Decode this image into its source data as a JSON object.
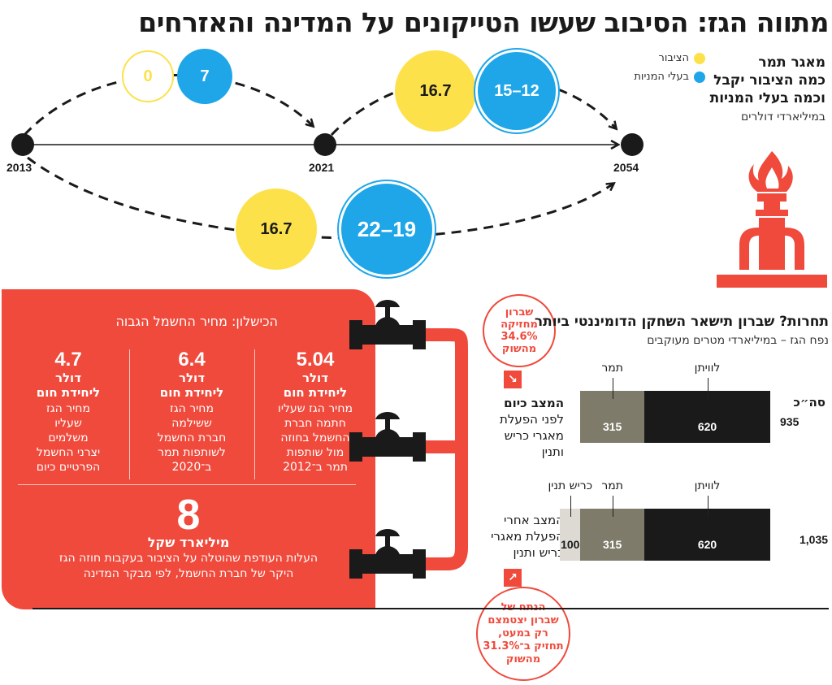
{
  "header": {
    "title": "מתווה הגז: הסיבוב שעשו הטייקונים על המדינה והאזרחים"
  },
  "reservoir": {
    "line1": "מאגר תמר",
    "line2": "כמה הציבור יקבל",
    "line3": "וכמה בעלי המניות",
    "units": "במיליארדי דולרים"
  },
  "legend": {
    "public": "הציבור",
    "owners": "בעלי המניות",
    "public_color": "#fce14b",
    "owners_color": "#1fa6e8"
  },
  "timeline": {
    "years": [
      "2013",
      "2021",
      "2054"
    ],
    "p2013_2021": {
      "public": "0",
      "owners": "7"
    },
    "p2021_2054": {
      "public": "16.7",
      "owners": "15–12"
    },
    "p2013_2054": {
      "public": "16.7",
      "owners": "22–19"
    }
  },
  "failure": {
    "title": "הכישלון: מחיר החשמל הגבוה",
    "col1": {
      "value": "5.04",
      "unit1": "דולר",
      "unit2": "ליחידת חום",
      "desc": [
        "מחיר הגז שעליו",
        "חתמה חברת",
        "החשמל בחוזה",
        "מול שותפות",
        "תמר ב־2012"
      ]
    },
    "col2": {
      "value": "6.4",
      "unit1": "דולר",
      "unit2": "ליחידת חום",
      "desc": [
        "מחיר הגז",
        "ששילמה",
        "חברת החשמל",
        "לשותפות תמר",
        "ב־2020"
      ]
    },
    "col3": {
      "value": "4.7",
      "unit1": "דולר",
      "unit2": "ליחידת חום",
      "desc": [
        "מחיר הגז",
        "שעליו",
        "משלמים",
        "יצרני החשמל",
        "הפרטיים כיום"
      ]
    },
    "big_value": "8",
    "big_unit": "מיליארד שקל",
    "big_desc": [
      "העלות העודפת שהוטלה על הציבור בעקבות חוזה הגז",
      "היקר של חברת החשמל, לפי מבקר המדינה"
    ]
  },
  "competition": {
    "title": "תחרות? שברון תישאר השחקן הדומיננטי ביותר",
    "subtitle": "נפח הגז – במיליארדי מטרים מעוקבים",
    "total_label": "סה״כ",
    "now_label": {
      "bold": "המצב כיום",
      "rest": [
        "לפני הפעלת",
        "מאגרי כריש",
        "ותנין"
      ]
    },
    "after_label": [
      "המצב אחרי",
      "הפעלת מאגרי",
      "כריש ותנין"
    ],
    "segment_names": [
      "לוויתן",
      "תמר",
      "כריש תנין"
    ],
    "segment_colors": [
      "#1a1a1a",
      "#7e7b6b",
      "#dcdad3"
    ],
    "before_badge": [
      "שברון",
      "מחזיקה",
      "34.6%",
      "מהשוק"
    ],
    "after_badge": [
      "הנתח של",
      "שברון יצטמצם",
      "רק במעט,",
      "תחזיק ב־31.3%",
      "מהשוק"
    ]
  },
  "chart_data": {
    "type": "bar",
    "title": "תחרות? שברון תישאר השחקן הדומיננטי ביותר",
    "subtitle": "נפח הגז – במיליארדי מטרים מעוקבים",
    "orientation": "horizontal-stacked",
    "categories": [
      "המצב כיום",
      "המצב אחרי"
    ],
    "series": [
      {
        "name": "לוויתן",
        "values": [
          620,
          620
        ]
      },
      {
        "name": "תמר",
        "values": [
          315,
          315
        ]
      },
      {
        "name": "כריש תנין",
        "values": [
          0,
          100
        ]
      }
    ],
    "totals": [
      "935",
      "1,035"
    ]
  }
}
